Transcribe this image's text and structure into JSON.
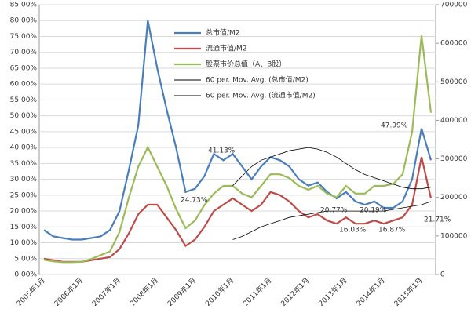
{
  "chart_data": {
    "type": "line",
    "categories": [
      "2005年1月",
      null,
      null,
      null,
      "2006年1月",
      null,
      null,
      null,
      "2007年1月",
      null,
      null,
      null,
      "2008年1月",
      null,
      null,
      null,
      "2009年1月",
      null,
      null,
      null,
      "2010年1月",
      null,
      null,
      null,
      "2011年1月",
      null,
      null,
      null,
      "2012年1月",
      null,
      null,
      null,
      "2013年1月",
      null,
      null,
      null,
      "2014年1月",
      null,
      null,
      null,
      "2015年1月",
      null
    ],
    "series": [
      {
        "name": "总市值/M2",
        "color": "#4a7ebb",
        "values": [
          14,
          12,
          11.5,
          11,
          11,
          11.5,
          12,
          14,
          20,
          33,
          47,
          80,
          65,
          52,
          40,
          26,
          27,
          31,
          38,
          36,
          38,
          34,
          30,
          34,
          37,
          36,
          34,
          30,
          28,
          29,
          26,
          24,
          26,
          23,
          22,
          23,
          21,
          21,
          23,
          30,
          46,
          36
        ]
      },
      {
        "name": "流通市值/M2",
        "color": "#be4b48",
        "values": [
          5,
          4.5,
          4,
          4,
          4,
          4.5,
          5,
          5.5,
          8,
          13,
          19,
          22,
          22,
          18,
          14,
          9,
          11,
          15,
          20,
          22,
          24,
          22,
          20,
          22,
          26,
          25,
          23,
          20,
          18,
          19,
          17,
          16,
          18,
          16,
          16,
          17,
          16,
          17,
          18,
          22,
          37,
          24
        ]
      },
      {
        "name": "股票市价总值（A、B股）",
        "color": "#9bbb59",
        "axis": "y2",
        "values": [
          38000,
          34000,
          32000,
          32000,
          33000,
          40000,
          50000,
          60000,
          110000,
          200000,
          280000,
          330000,
          280000,
          230000,
          170000,
          120000,
          140000,
          180000,
          210000,
          230000,
          230000,
          210000,
          200000,
          230000,
          260000,
          260000,
          250000,
          230000,
          220000,
          230000,
          210000,
          200000,
          230000,
          210000,
          210000,
          230000,
          230000,
          235000,
          260000,
          370000,
          620000,
          420000
        ]
      },
      {
        "name": "60 per. Mov. Avg. (总市值/M2)",
        "color": "#000000",
        "values": [
          null,
          null,
          null,
          null,
          null,
          null,
          null,
          null,
          null,
          null,
          null,
          null,
          null,
          null,
          null,
          null,
          null,
          null,
          null,
          null,
          28,
          31,
          34,
          36,
          37,
          38,
          39,
          39.5,
          40,
          39.5,
          38.5,
          37,
          35,
          33,
          31.5,
          30.5,
          29.5,
          28.5,
          27.5,
          27,
          27,
          27.5
        ]
      },
      {
        "name": "60 per. Mov. Avg. (流通市值/M2)",
        "color": "#000000",
        "values": [
          null,
          null,
          null,
          null,
          null,
          null,
          null,
          null,
          null,
          null,
          null,
          null,
          null,
          null,
          null,
          null,
          null,
          null,
          null,
          null,
          11,
          12,
          13.5,
          15,
          16,
          17,
          18,
          18.5,
          19,
          19.5,
          20,
          20,
          20,
          20,
          20,
          20,
          20,
          20.5,
          21,
          21.5,
          22,
          23
        ]
      }
    ],
    "annotations": [
      "41.13%",
      "24.73%",
      "47.99%",
      "20.77%",
      "20.19%",
      "16.03%",
      "16.87%",
      "21.71%"
    ],
    "ylim": [
      0,
      85
    ],
    "yticks": [
      {
        "value": 0,
        "label": "0.00%"
      },
      {
        "value": 5,
        "label": "5.00%"
      },
      {
        "value": 10,
        "label": "10.00%"
      },
      {
        "value": 15,
        "label": "15.00%"
      },
      {
        "value": 20,
        "label": "20.00%"
      },
      {
        "value": 25,
        "label": "25.00%"
      },
      {
        "value": 30,
        "label": "30.00%"
      },
      {
        "value": 35,
        "label": "35.00%"
      },
      {
        "value": 40,
        "label": "40.00%"
      },
      {
        "value": 45,
        "label": "45.00%"
      },
      {
        "value": 50,
        "label": "50.00%"
      },
      {
        "value": 55,
        "label": "55.00%"
      },
      {
        "value": 60,
        "label": "60.00%"
      },
      {
        "value": 65,
        "label": "65.00%"
      },
      {
        "value": 70,
        "label": "70.00%"
      },
      {
        "value": 75,
        "label": "75.00%"
      },
      {
        "value": 80,
        "label": "80.00%"
      },
      {
        "value": 85,
        "label": "85.00%"
      }
    ],
    "y2lim": [
      0,
      700000
    ],
    "y2ticks": [
      0,
      100000,
      200000,
      300000,
      400000,
      500000,
      600000,
      700000
    ],
    "grid": true
  }
}
